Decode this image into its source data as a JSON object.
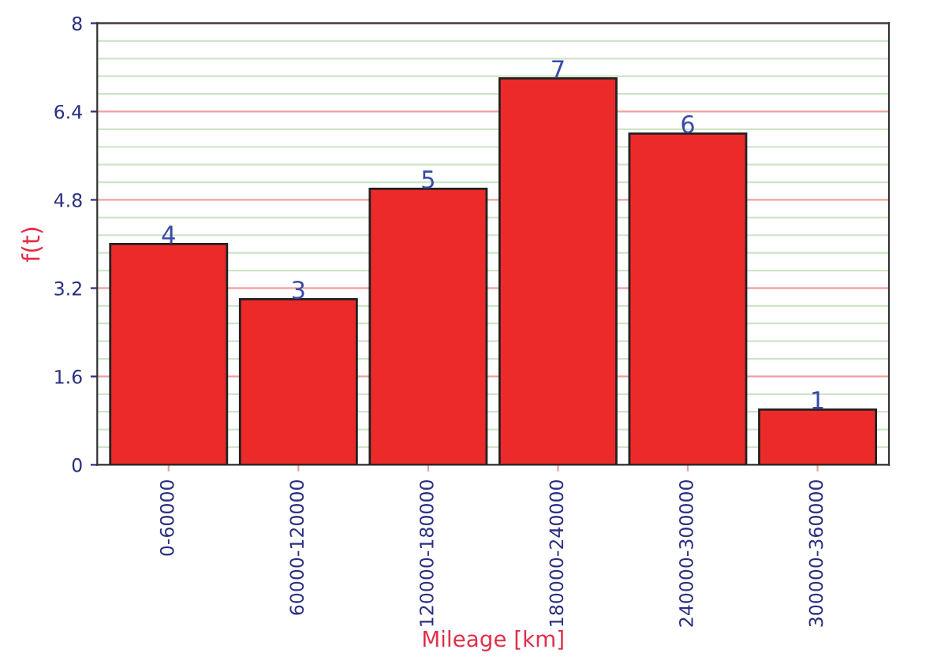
{
  "chart_data": {
    "type": "bar",
    "xlabel": "Mileage [km]",
    "ylabel": "f(t)",
    "categories": [
      "0-60000",
      "60000-120000",
      "120000-180000",
      "180000-240000",
      "240000-300000",
      "300000-360000"
    ],
    "values": [
      4,
      3,
      5,
      7,
      6,
      1
    ],
    "color": "#ec2a2a",
    "ylim": [
      0,
      8
    ],
    "yticks": [
      0,
      1.6,
      3.2,
      4.8,
      6.4,
      8
    ],
    "grid": "y",
    "data_labels": true
  }
}
